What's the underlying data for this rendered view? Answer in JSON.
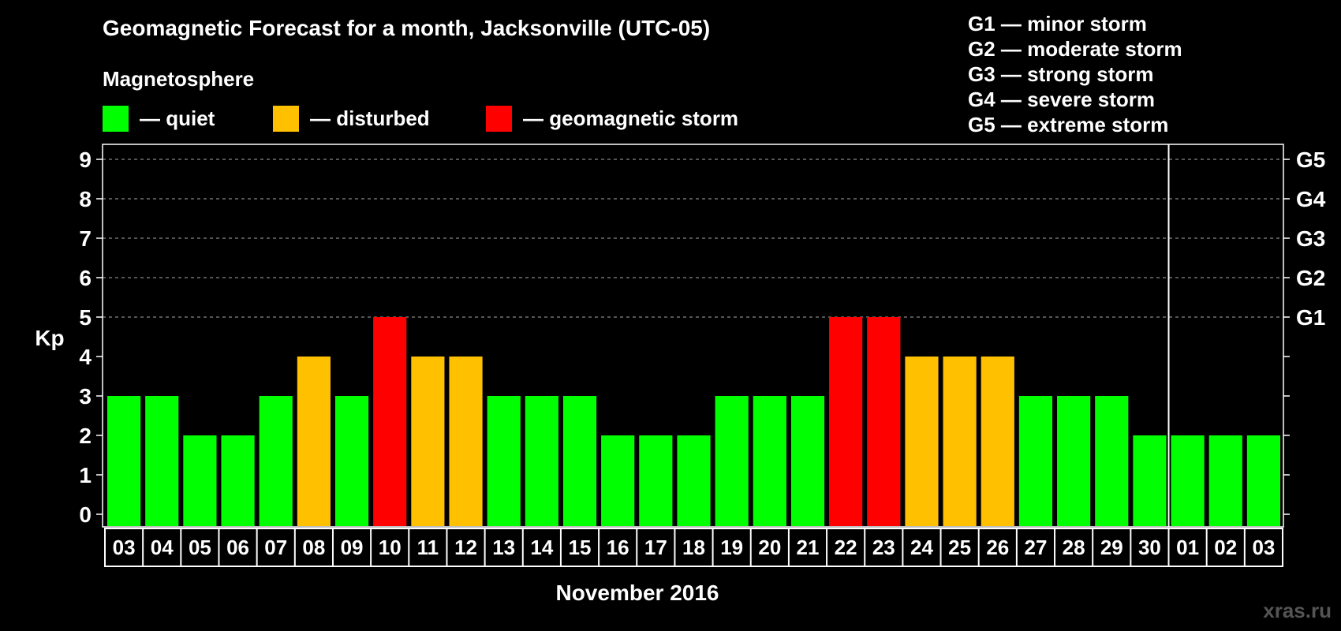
{
  "title": "Geomagnetic Forecast for a month, Jacksonville (UTC-05)",
  "subtitle": "Magnetosphere",
  "legend": [
    {
      "label": "— quiet",
      "color": "#00ff00"
    },
    {
      "label": "— disturbed",
      "color": "#ffc000"
    },
    {
      "label": "— geomagnetic storm",
      "color": "#ff0000"
    }
  ],
  "g_legend": [
    "G1 — minor storm",
    "G2 — moderate storm",
    "G3 — strong storm",
    "G4 — severe storm",
    "G5 — extreme storm"
  ],
  "watermark": "xras.ru",
  "chart_data": {
    "type": "bar",
    "title": "Geomagnetic Forecast for a month, Jacksonville (UTC-05)",
    "xlabel": "November 2016",
    "ylabel": "Kp",
    "ylim": [
      0,
      9
    ],
    "yticks": [
      "0",
      "1",
      "2",
      "3",
      "4",
      "5",
      "6",
      "7",
      "8",
      "9"
    ],
    "right_axis_labels": [
      {
        "kp": 5,
        "label": "G1"
      },
      {
        "kp": 6,
        "label": "G2"
      },
      {
        "kp": 7,
        "label": "G3"
      },
      {
        "kp": 8,
        "label": "G4"
      },
      {
        "kp": 9,
        "label": "G5"
      }
    ],
    "grid": "dashed horizontal at Kp 5-9",
    "month_divider_after": "30",
    "categories": [
      "03",
      "04",
      "05",
      "06",
      "07",
      "08",
      "09",
      "10",
      "11",
      "12",
      "13",
      "14",
      "15",
      "16",
      "17",
      "18",
      "19",
      "20",
      "21",
      "22",
      "23",
      "24",
      "25",
      "26",
      "27",
      "28",
      "29",
      "30",
      "01",
      "02",
      "03"
    ],
    "values": [
      3,
      3,
      2,
      2,
      3,
      4,
      3,
      5,
      4,
      4,
      3,
      3,
      3,
      2,
      2,
      2,
      3,
      3,
      3,
      5,
      5,
      4,
      4,
      4,
      3,
      3,
      3,
      2,
      2,
      2,
      2
    ],
    "color_rule": {
      "quiet": "#00ff00",
      "disturbed": "#ffc000",
      "storm": "#ff0000"
    }
  }
}
